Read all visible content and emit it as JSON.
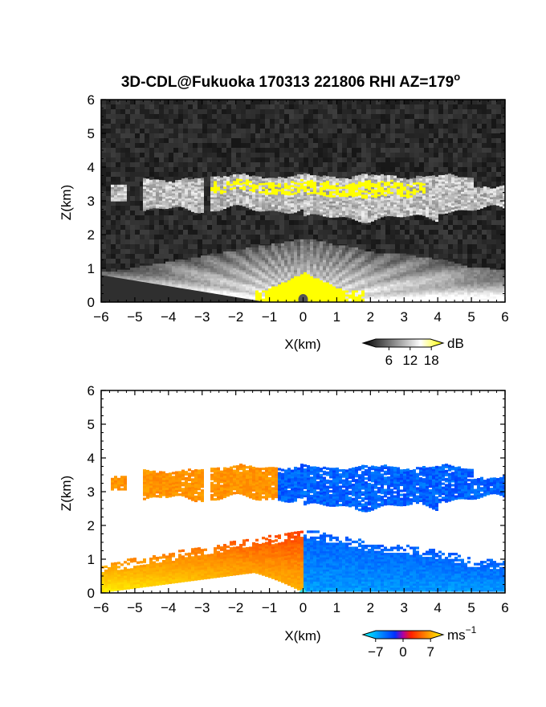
{
  "figure": {
    "title": "3D-CDL@Fukuoka 170313 221806 RHI AZ=179",
    "title_degree": "o"
  },
  "chart_data": [
    {
      "type": "heatmap",
      "variable": "reflectivity",
      "xlabel": "X(km)",
      "ylabel": "Z(km)",
      "xlim": [
        -6,
        6
      ],
      "ylim": [
        0,
        6
      ],
      "xticks": [
        "−6",
        "−5",
        "−4",
        "−3",
        "−2",
        "−1",
        "0",
        "1",
        "2",
        "3",
        "4",
        "5",
        "6"
      ],
      "yticks": [
        "0",
        "1",
        "2",
        "3",
        "4",
        "5",
        "6"
      ],
      "grid": false,
      "background": "noise (dark gray)",
      "colorbar": {
        "unit": "dB",
        "ticks": [
          "6",
          "12",
          "18"
        ],
        "range": [
          0,
          20
        ],
        "colors": [
          "#000000",
          "#ffffff",
          "#ffff00"
        ]
      },
      "features": [
        {
          "name": "cloud layer",
          "x_range": [
            -5.8,
            6.0
          ],
          "z_range": [
            2.5,
            3.6
          ],
          "max_dB": 20
        },
        {
          "name": "lower scatter fan",
          "x_range": [
            -6.0,
            6.0
          ],
          "z_range": [
            0.0,
            1.9
          ],
          "max_dB": 20
        }
      ]
    },
    {
      "type": "heatmap",
      "variable": "Doppler velocity",
      "xlabel": "X(km)",
      "ylabel": "Z(km)",
      "xlim": [
        -6,
        6
      ],
      "ylim": [
        0,
        6
      ],
      "xticks": [
        "−6",
        "−5",
        "−4",
        "−3",
        "−2",
        "−1",
        "0",
        "1",
        "2",
        "3",
        "4",
        "5",
        "6"
      ],
      "yticks": [
        "0",
        "1",
        "2",
        "3",
        "4",
        "5",
        "6"
      ],
      "grid": false,
      "colorbar": {
        "unit": "ms",
        "unit_exp": "−1",
        "ticks": [
          "−7",
          "0",
          "7"
        ],
        "range": [
          -9,
          9
        ],
        "colors": [
          "#00ffff",
          "#0000ff",
          "#ff0000",
          "#ffff00"
        ]
      },
      "features": [
        {
          "name": "cloud layer, approaching side",
          "x_range": [
            -5.8,
            -0.8
          ],
          "z_range": [
            2.8,
            3.7
          ],
          "velocity": 4
        },
        {
          "name": "cloud layer, receding side",
          "x_range": [
            -0.8,
            6.0
          ],
          "z_range": [
            2.4,
            3.7
          ],
          "velocity": -6
        },
        {
          "name": "lower layer, left",
          "x_range": [
            -6.0,
            0.0
          ],
          "z_range": [
            0.0,
            1.8
          ],
          "velocity_range": [
            1,
            8
          ]
        },
        {
          "name": "lower layer, right",
          "x_range": [
            0.0,
            6.0
          ],
          "z_range": [
            0.0,
            1.8
          ],
          "velocity_range": [
            -8,
            -2
          ]
        }
      ]
    }
  ]
}
